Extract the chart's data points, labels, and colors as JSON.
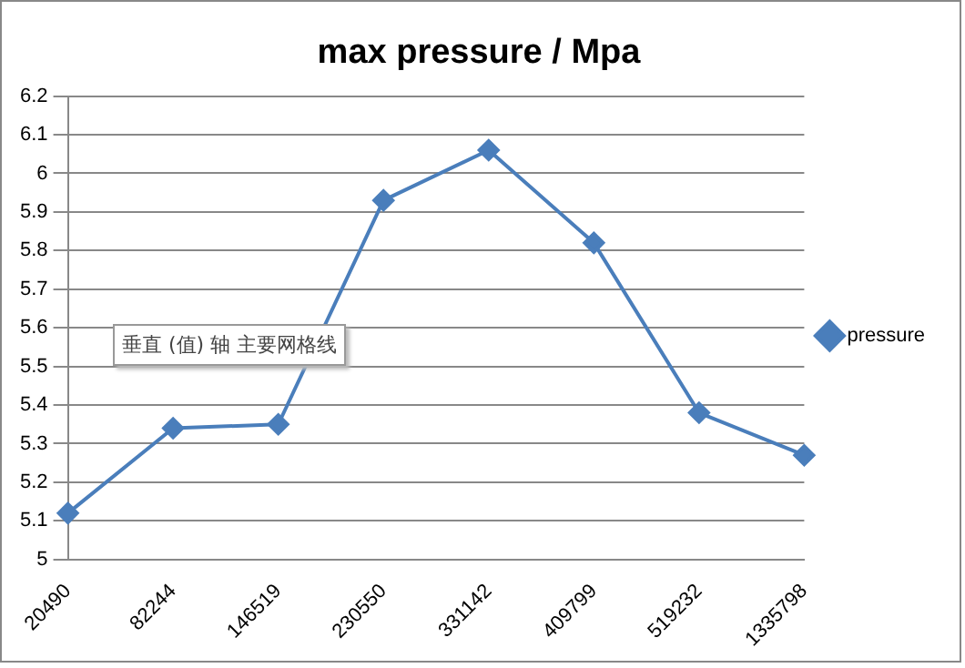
{
  "chart_data": {
    "type": "line",
    "title": "max pressure / Mpa",
    "categories": [
      "20490",
      "82244",
      "146519",
      "230550",
      "331142",
      "409799",
      "519232",
      "1335798"
    ],
    "series": [
      {
        "name": "pressure",
        "color": "#4a7ebb",
        "values": [
          5.12,
          5.34,
          5.35,
          5.93,
          6.06,
          5.82,
          5.38,
          5.27
        ]
      }
    ],
    "ylim": [
      5,
      6.2
    ],
    "yticks": [
      5,
      5.1,
      5.2,
      5.3,
      5.4,
      5.5,
      5.6,
      5.7,
      5.8,
      5.9,
      6,
      6.1,
      6.2
    ],
    "grid": "y",
    "legend": "right",
    "marker": "diamond",
    "line_style": "solid",
    "annotations": [
      "垂直 (值) 轴 主要网格线"
    ]
  }
}
